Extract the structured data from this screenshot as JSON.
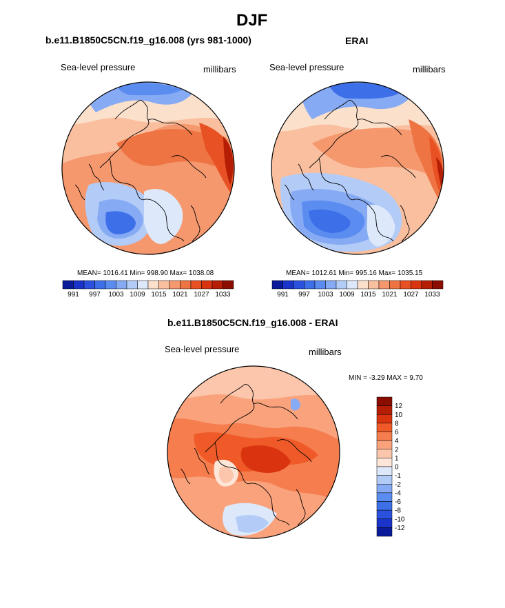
{
  "figure": {
    "title": "DJF",
    "panels": {
      "model": {
        "header": "b.e11.B1850C5CN.f19_g16.008 (yrs 981-1000)",
        "left_label": "Sea-level pressure",
        "right_label": "millibars",
        "stats": "MEAN= 1016.41  Min= 998.90  Max= 1038.08"
      },
      "obs": {
        "header": "ERAI",
        "left_label": "Sea-level pressure",
        "right_label": "millibars",
        "stats": "MEAN= 1012.61  Min= 995.16  Max= 1035.15"
      },
      "diff": {
        "header": "b.e11.B1850C5CN.f19_g16.008 - ERAI",
        "left_label": "Sea-level pressure",
        "right_label": "millibars",
        "stats": "MIN =  -3.29 MAX =   9.70"
      }
    }
  },
  "chart_data": [
    {
      "type": "heatmap",
      "projection": "north-polar-stereographic",
      "title": "b.e11.B1850C5CN.f19_g16.008 (yrs 981-1000)",
      "variable": "Sea-level pressure",
      "units": "millibars",
      "mean": 1016.41,
      "min": 998.9,
      "max": 1038.08,
      "colorbar": {
        "tick_labels": [
          "991",
          "997",
          "1003",
          "1009",
          "1015",
          "1021",
          "1027",
          "1033"
        ],
        "levels": [
          991,
          994,
          997,
          1000,
          1003,
          1006,
          1009,
          1012,
          1015,
          1018,
          1021,
          1024,
          1027,
          1030,
          1033
        ],
        "colors": [
          "#0a1a99",
          "#1a33c8",
          "#2a52de",
          "#3c6fe8",
          "#5b8cf0",
          "#86abf4",
          "#b3cbf7",
          "#dde8fa",
          "#fbe0cc",
          "#f9bf9e",
          "#f5986e",
          "#ef7443",
          "#e75124",
          "#d9340f",
          "#b51e04",
          "#8a0d00"
        ]
      }
    },
    {
      "type": "heatmap",
      "projection": "north-polar-stereographic",
      "title": "ERAI",
      "variable": "Sea-level pressure",
      "units": "millibars",
      "mean": 1012.61,
      "min": 995.16,
      "max": 1035.15,
      "colorbar": {
        "tick_labels": [
          "991",
          "997",
          "1003",
          "1009",
          "1015",
          "1021",
          "1027",
          "1033"
        ],
        "levels": [
          991,
          994,
          997,
          1000,
          1003,
          1006,
          1009,
          1012,
          1015,
          1018,
          1021,
          1024,
          1027,
          1030,
          1033
        ],
        "colors": [
          "#0a1a99",
          "#1a33c8",
          "#2a52de",
          "#3c6fe8",
          "#5b8cf0",
          "#86abf4",
          "#b3cbf7",
          "#dde8fa",
          "#fbe0cc",
          "#f9bf9e",
          "#f5986e",
          "#ef7443",
          "#e75124",
          "#d9340f",
          "#b51e04",
          "#8a0d00"
        ]
      }
    },
    {
      "type": "heatmap",
      "projection": "north-polar-stereographic",
      "title": "b.e11.B1850C5CN.f19_g16.008 - ERAI",
      "variable": "Sea-level pressure",
      "units": "millibars",
      "min": -3.29,
      "max": 9.7,
      "colorbar": {
        "orientation": "vertical",
        "tick_labels": [
          "12",
          "10",
          "8",
          "6",
          "4",
          "2",
          "1",
          "0",
          "-1",
          "-2",
          "-4",
          "-6",
          "-8",
          "-10",
          "-12"
        ],
        "colors": [
          "#8a0d00",
          "#b51e04",
          "#d9340f",
          "#ef5a28",
          "#f57d4e",
          "#f9a27c",
          "#fbc6ab",
          "#fde6d8",
          "#dde8fa",
          "#b3cbf7",
          "#86abf4",
          "#5b8cf0",
          "#3c6fe8",
          "#2a52de",
          "#1a33c8",
          "#0a1a99"
        ]
      }
    }
  ]
}
